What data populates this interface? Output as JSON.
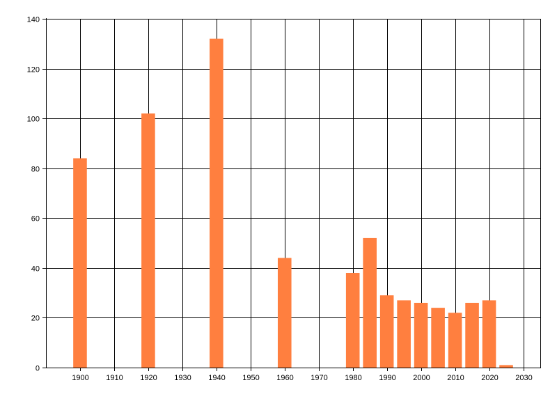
{
  "chart_data": {
    "type": "bar",
    "title": "",
    "xlabel": "",
    "ylabel": "",
    "x": [
      1900,
      1920,
      1940,
      1960,
      1980,
      1985,
      1990,
      1995,
      2000,
      2005,
      2010,
      2015,
      2020,
      2025
    ],
    "values": [
      84,
      102,
      132,
      44,
      38,
      52,
      29,
      27,
      26,
      24,
      22,
      26,
      27,
      1
    ],
    "xlim": [
      1890,
      2035
    ],
    "ylim": [
      0,
      140
    ],
    "x_ticks": [
      1900,
      1910,
      1920,
      1930,
      1940,
      1950,
      1960,
      1970,
      1980,
      1990,
      2000,
      2010,
      2020,
      2030
    ],
    "x_tick_labels": [
      "1900",
      "1910",
      "1920",
      "1930",
      "1940",
      "1950",
      "1960",
      "1970",
      "1980",
      "1990",
      "2000",
      "2010",
      "2020",
      "2030"
    ],
    "y_ticks": [
      0,
      20,
      40,
      60,
      80,
      100,
      120,
      140
    ],
    "y_tick_labels": [
      "0",
      "20",
      "40",
      "60",
      "80",
      "100",
      "120",
      "140"
    ],
    "grid": true,
    "bar_color": "#ff7f3f",
    "grid_color": "#000000"
  }
}
